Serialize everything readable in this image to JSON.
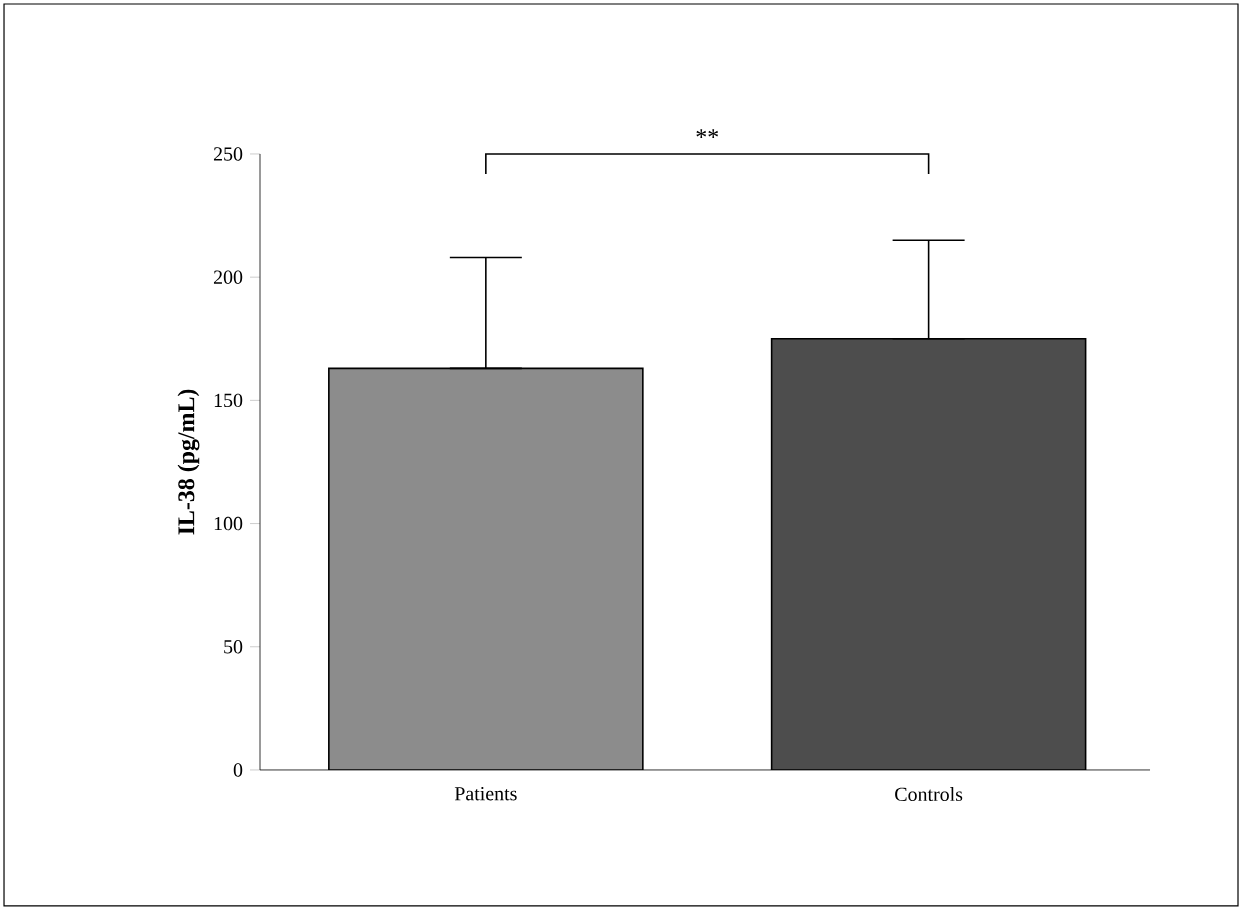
{
  "chart_data": {
    "type": "bar",
    "ylabel": "IL-38 (pg/mL)",
    "categories": [
      "Patients",
      "Controls"
    ],
    "values": [
      163,
      175
    ],
    "colors": [
      "#8c8c8c",
      "#4d4d4d"
    ],
    "errors": [
      [
        163,
        208
      ],
      [
        175,
        215
      ]
    ],
    "ylim": [
      0,
      250
    ],
    "yticks": [
      0,
      50,
      100,
      150,
      200,
      250
    ],
    "annotations": [
      "**"
    ]
  }
}
